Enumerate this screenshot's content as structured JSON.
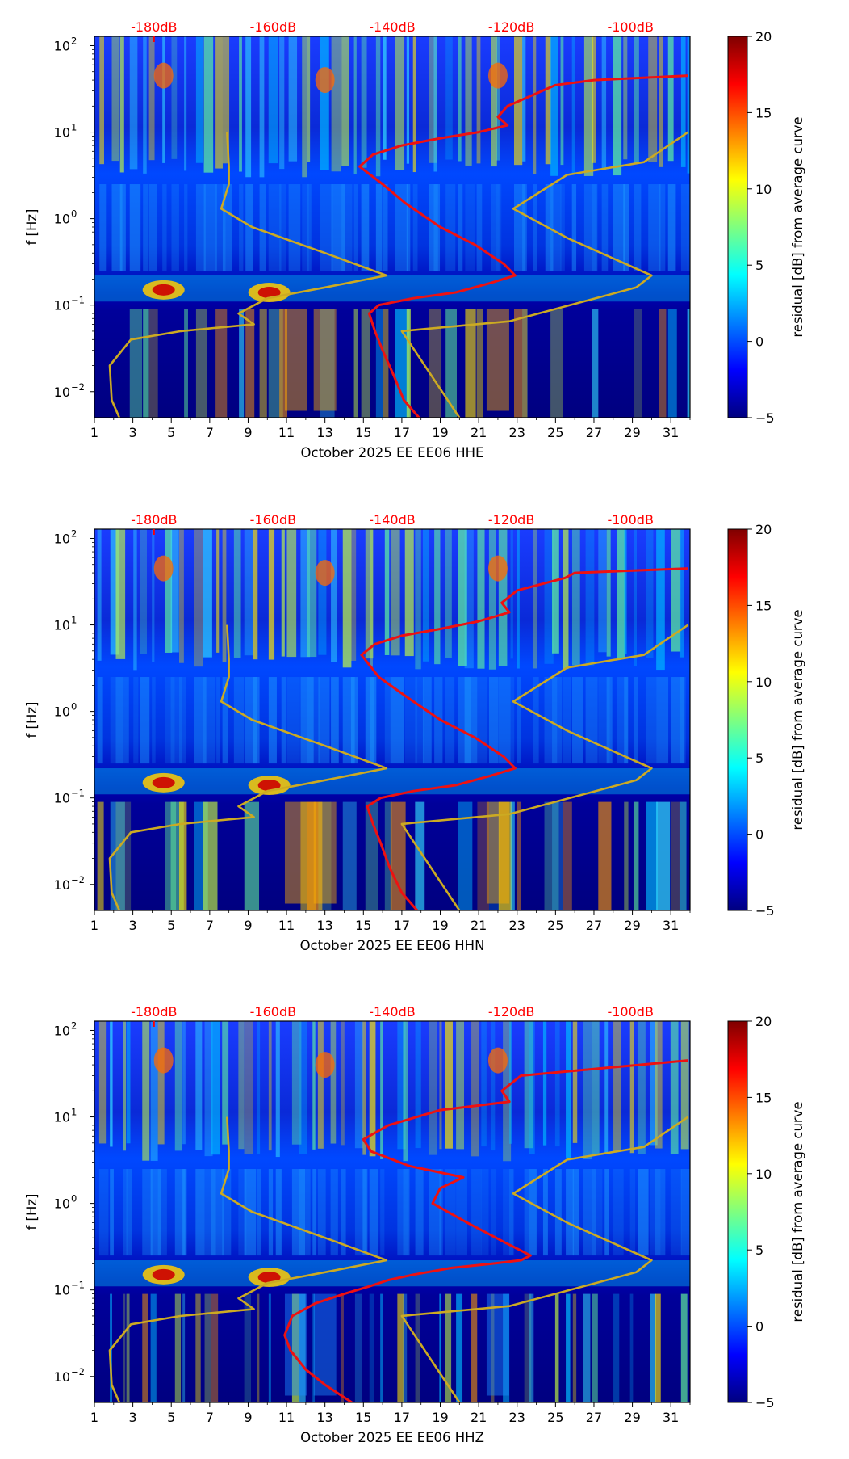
{
  "figure": {
    "colorbar_label": "residual [dB] from average curve",
    "colorbar_ticks": [
      20,
      15,
      10,
      5,
      0,
      -5
    ],
    "colorbar_range": [
      -5,
      20
    ],
    "colormap": [
      "#00007f",
      "#0000ff",
      "#007fff",
      "#00ffff",
      "#7fff7f",
      "#ffff00",
      "#ff7f00",
      "#ff0000",
      "#7f0000"
    ],
    "y_label": "f [Hz]",
    "top_labels": [
      "-180dB",
      "-160dB",
      "-140dB",
      "-120dB",
      "-100dB"
    ],
    "x_ticks": [
      "1",
      "3",
      "5",
      "7",
      "9",
      "11",
      "13",
      "15",
      "17",
      "19",
      "21",
      "23",
      "25",
      "27",
      "29",
      "31"
    ],
    "y_tick_bases": [
      "10",
      "10",
      "10",
      "10",
      "10"
    ],
    "y_tick_exps": [
      "2",
      "1",
      "0",
      "−1",
      "−2"
    ],
    "curve_colors": {
      "noise": "#ee1111",
      "model": "#ccaa22"
    }
  },
  "chart_data": [
    {
      "type": "heatmap",
      "title": "October 2025 EE EE06  HHE",
      "xlabel": "October 2025 EE EE06  HHE",
      "ylabel": "f [Hz]",
      "xlim": [
        1,
        32
      ],
      "ylim_hz": [
        0.005,
        128
      ],
      "yscale": "log",
      "top_axis_db": [
        -180,
        -160,
        -140,
        -120,
        -100
      ],
      "top_axis_day": [
        4.1,
        10.3,
        16.5,
        22.7,
        28.9
      ],
      "noise_curve_day": [
        17.9,
        17.1,
        16.6,
        16.0,
        15.6,
        15.3,
        15.8,
        17.6,
        19.8,
        21.6,
        22.9,
        22.3,
        20.8,
        19.0,
        17.2,
        16.0,
        14.8,
        15.5,
        17.0,
        19.0,
        21.0,
        22.5,
        22.0,
        22.5,
        25.0,
        27.0,
        31.9
      ],
      "noise_curve_hz": [
        0.005,
        0.008,
        0.015,
        0.03,
        0.05,
        0.08,
        0.1,
        0.12,
        0.14,
        0.18,
        0.22,
        0.3,
        0.5,
        0.8,
        1.5,
        2.5,
        4.0,
        5.5,
        7.0,
        8.5,
        10,
        12,
        15,
        20,
        35,
        40,
        45
      ],
      "model_curve_day": [
        20.0,
        17.0,
        22.6,
        29.2,
        30.0,
        25.6,
        22.8,
        25.6,
        29.6,
        31.9
      ],
      "model_curve_hz": [
        0.005,
        0.05,
        0.065,
        0.16,
        0.22,
        0.6,
        1.3,
        3.2,
        4.5,
        10
      ],
      "model_curve2_day": [
        2.3,
        1.9,
        1.8,
        2.9,
        5.5,
        9.3,
        8.5,
        10.0,
        13.0,
        16.2,
        13.0,
        9.2,
        7.6,
        8.0,
        8.0,
        7.9
      ],
      "model_curve2_hz": [
        0.005,
        0.008,
        0.02,
        0.04,
        0.05,
        0.06,
        0.08,
        0.12,
        0.16,
        0.22,
        0.4,
        0.8,
        1.3,
        2.5,
        4.0,
        10
      ]
    },
    {
      "type": "heatmap",
      "title": "October 2025 EE EE06  HHN",
      "xlabel": "October 2025 EE EE06  HHN",
      "ylabel": "f [Hz]",
      "xlim": [
        1,
        32
      ],
      "ylim_hz": [
        0.005,
        128
      ],
      "yscale": "log",
      "top_axis_db": [
        -180,
        -160,
        -140,
        -120,
        -100
      ],
      "top_axis_day": [
        4.1,
        10.3,
        16.5,
        22.7,
        28.9
      ],
      "noise_curve_day": [
        17.8,
        17.0,
        16.4,
        15.9,
        15.5,
        15.2,
        15.9,
        17.6,
        19.8,
        21.6,
        22.9,
        22.3,
        20.8,
        19.0,
        17.2,
        15.8,
        14.9,
        15.6,
        17.0,
        19.0,
        21.0,
        22.6,
        22.2,
        23.0,
        25.5,
        26.0,
        31.9
      ],
      "noise_curve_hz": [
        0.005,
        0.008,
        0.015,
        0.03,
        0.05,
        0.08,
        0.1,
        0.12,
        0.14,
        0.18,
        0.22,
        0.3,
        0.5,
        0.8,
        1.5,
        2.5,
        4.5,
        6.0,
        7.5,
        9.0,
        11,
        14,
        18,
        25,
        35,
        40,
        45
      ],
      "model_curve_day": [
        20.0,
        17.0,
        22.6,
        29.2,
        30.0,
        25.6,
        22.8,
        25.6,
        29.6,
        31.9
      ],
      "model_curve_hz": [
        0.005,
        0.05,
        0.065,
        0.16,
        0.22,
        0.6,
        1.3,
        3.2,
        4.5,
        10
      ],
      "model_curve2_day": [
        2.3,
        1.9,
        1.8,
        2.9,
        5.5,
        9.3,
        8.5,
        10.0,
        13.0,
        16.2,
        13.0,
        9.2,
        7.6,
        8.0,
        8.0,
        7.9
      ],
      "model_curve2_hz": [
        0.005,
        0.008,
        0.02,
        0.04,
        0.05,
        0.06,
        0.08,
        0.12,
        0.16,
        0.22,
        0.4,
        0.8,
        1.3,
        2.5,
        4.0,
        10
      ]
    },
    {
      "type": "heatmap",
      "title": "October 2025 EE EE06  HHZ",
      "xlabel": "October 2025 EE EE06  HHZ",
      "ylabel": "f [Hz]",
      "xlim": [
        1,
        32
      ],
      "ylim_hz": [
        0.005,
        128
      ],
      "yscale": "log",
      "top_axis_db": [
        -180,
        -160,
        -140,
        -120,
        -100
      ],
      "top_axis_day": [
        4.1,
        10.3,
        16.5,
        22.7,
        28.9
      ],
      "noise_curve_day": [
        14.4,
        13.0,
        12.0,
        11.2,
        10.9,
        11.3,
        12.5,
        14.0,
        15.3,
        16.3,
        17.6,
        19.6,
        21.6,
        23.2,
        23.7,
        22.4,
        20.4,
        18.6,
        19.0,
        20.2,
        17.4,
        15.4,
        15.0,
        16.3,
        19.0,
        22.6,
        22.2,
        23.2,
        31.9
      ],
      "noise_curve_hz": [
        0.005,
        0.008,
        0.012,
        0.02,
        0.03,
        0.05,
        0.07,
        0.09,
        0.11,
        0.13,
        0.15,
        0.18,
        0.2,
        0.22,
        0.25,
        0.35,
        0.6,
        1.0,
        1.5,
        2.0,
        2.7,
        4.0,
        5.5,
        8.0,
        12,
        15,
        20,
        30,
        45
      ],
      "model_curve_day": [
        20.0,
        17.0,
        22.6,
        29.2,
        30.0,
        25.6,
        22.8,
        25.6,
        29.6,
        31.9
      ],
      "model_curve_hz": [
        0.005,
        0.05,
        0.065,
        0.16,
        0.22,
        0.6,
        1.3,
        3.2,
        4.5,
        10
      ],
      "model_curve2_day": [
        2.3,
        1.9,
        1.8,
        2.9,
        5.5,
        9.3,
        8.5,
        10.0,
        13.0,
        16.2,
        13.0,
        9.2,
        7.6,
        8.0,
        8.0,
        7.9
      ],
      "model_curve2_hz": [
        0.005,
        0.008,
        0.02,
        0.04,
        0.05,
        0.06,
        0.08,
        0.12,
        0.16,
        0.22,
        0.4,
        0.8,
        1.3,
        2.5,
        4.0,
        10
      ]
    }
  ]
}
